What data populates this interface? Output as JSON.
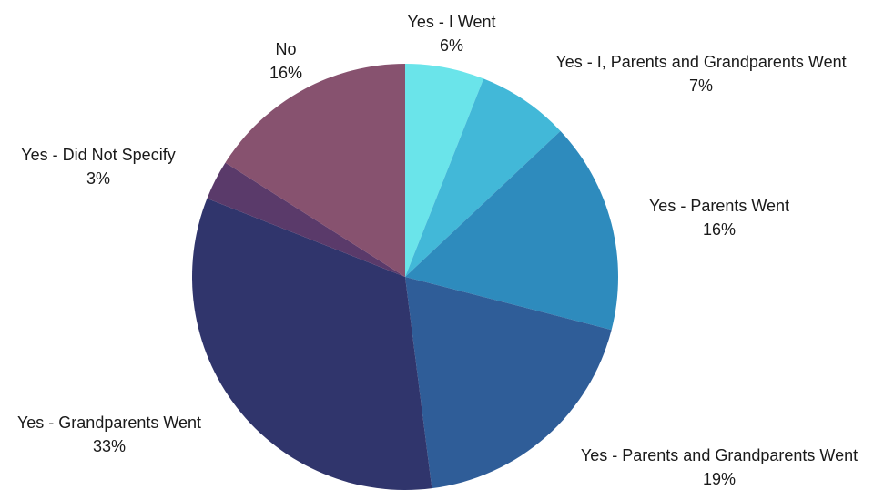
{
  "chart_data": {
    "type": "pie",
    "title": "",
    "slices": [
      {
        "label": "Yes - I Went",
        "value": 6,
        "percent_label": "6%",
        "color": "#6ae4ea"
      },
      {
        "label": "Yes - I, Parents and Grandparents Went",
        "value": 7,
        "percent_label": "7%",
        "color": "#42b8d8"
      },
      {
        "label": "Yes - Parents Went",
        "value": 16,
        "percent_label": "16%",
        "color": "#2e8bbd"
      },
      {
        "label": "Yes - Parents and Grandparents Went",
        "value": 19,
        "percent_label": "19%",
        "color": "#2f5d98"
      },
      {
        "label": "Yes - Grandparents Went",
        "value": 33,
        "percent_label": "33%",
        "color": "#30356c"
      },
      {
        "label": "Yes - Did Not Specify",
        "value": 3,
        "percent_label": "3%",
        "color": "#5a3a6a"
      },
      {
        "label": "No",
        "value": 16,
        "percent_label": "16%",
        "color": "#87526f"
      }
    ],
    "start_angle": "top",
    "direction": "clockwise",
    "legend": "none"
  }
}
